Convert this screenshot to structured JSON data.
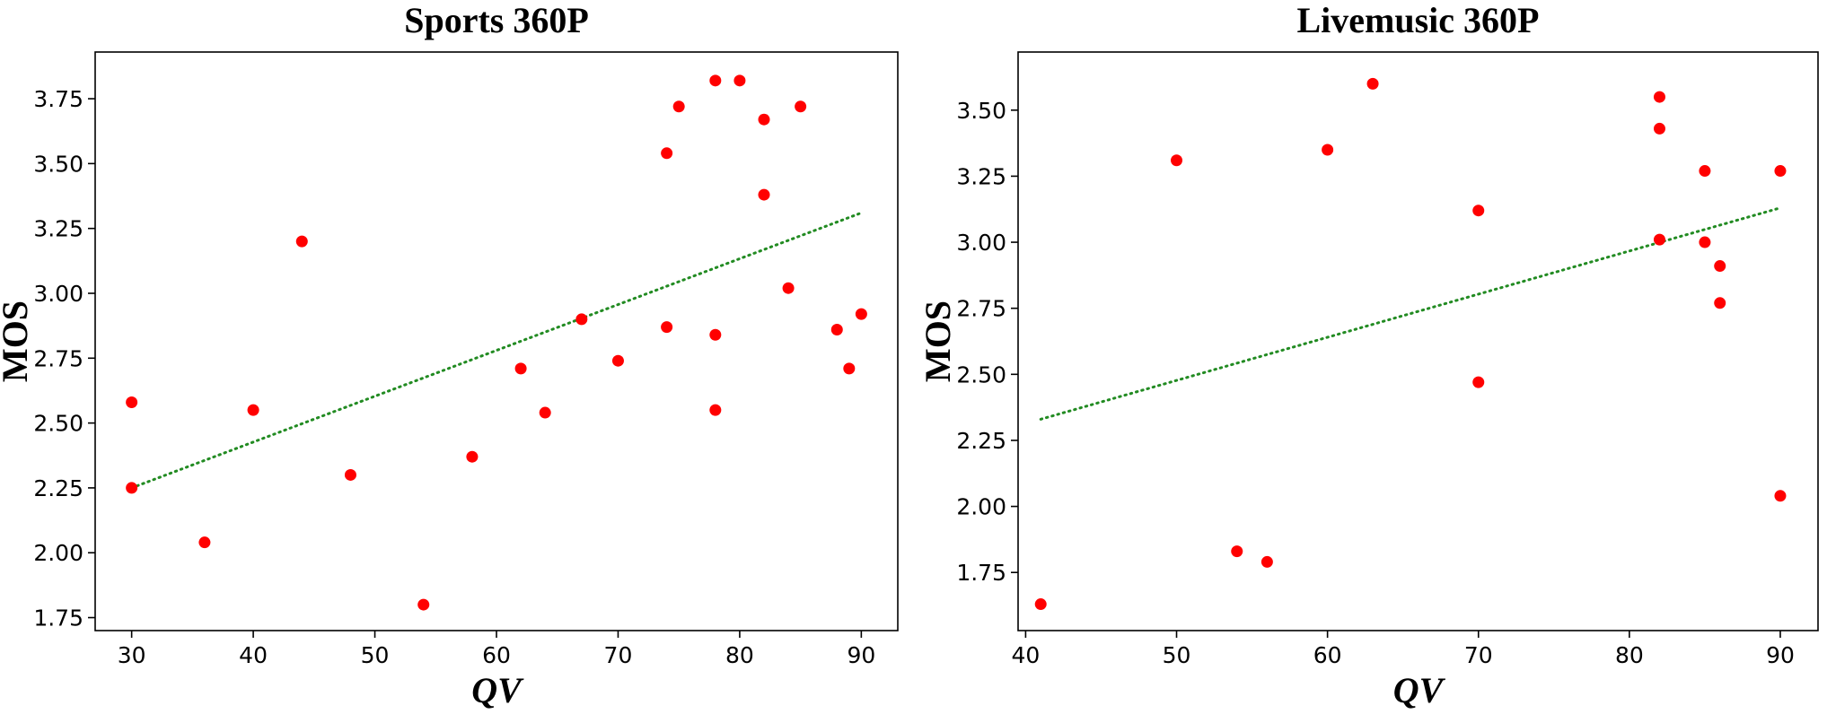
{
  "chart_data": [
    {
      "type": "scatter",
      "title": "Sports 360P",
      "xlabel": "QV",
      "ylabel": "MOS",
      "xlim": [
        27,
        93
      ],
      "ylim": [
        1.7,
        3.93
      ],
      "xticks": [
        30,
        40,
        50,
        60,
        70,
        80,
        90
      ],
      "yticks": [
        1.75,
        2.0,
        2.25,
        2.5,
        2.75,
        3.0,
        3.25,
        3.5,
        3.75
      ],
      "grid": false,
      "series": [
        {
          "marker_color": "#ff0000",
          "points": [
            {
              "x": 30,
              "y": 2.58
            },
            {
              "x": 30,
              "y": 2.25
            },
            {
              "x": 36,
              "y": 2.04
            },
            {
              "x": 40,
              "y": 2.55
            },
            {
              "x": 44,
              "y": 3.2
            },
            {
              "x": 48,
              "y": 2.3
            },
            {
              "x": 54,
              "y": 1.8
            },
            {
              "x": 58,
              "y": 2.37
            },
            {
              "x": 62,
              "y": 2.71
            },
            {
              "x": 64,
              "y": 2.54
            },
            {
              "x": 67,
              "y": 2.9
            },
            {
              "x": 70,
              "y": 2.74
            },
            {
              "x": 74,
              "y": 3.54
            },
            {
              "x": 74,
              "y": 2.87
            },
            {
              "x": 75,
              "y": 3.72
            },
            {
              "x": 78,
              "y": 3.82
            },
            {
              "x": 78,
              "y": 2.84
            },
            {
              "x": 78,
              "y": 2.55
            },
            {
              "x": 80,
              "y": 3.82
            },
            {
              "x": 82,
              "y": 3.67
            },
            {
              "x": 82,
              "y": 3.38
            },
            {
              "x": 84,
              "y": 3.02
            },
            {
              "x": 85,
              "y": 3.72
            },
            {
              "x": 88,
              "y": 2.86
            },
            {
              "x": 89,
              "y": 2.71
            },
            {
              "x": 90,
              "y": 2.92
            }
          ]
        }
      ],
      "trendline": {
        "x": [
          30,
          90
        ],
        "y": [
          2.25,
          3.31
        ],
        "color": "#228b22",
        "style": "dotted"
      }
    },
    {
      "type": "scatter",
      "title": "Livemusic 360P",
      "xlabel": "QV",
      "ylabel": "MOS",
      "xlim": [
        39.5,
        92.5
      ],
      "ylim": [
        1.53,
        3.72
      ],
      "xticks": [
        40,
        50,
        60,
        70,
        80,
        90
      ],
      "yticks": [
        1.75,
        2.0,
        2.25,
        2.5,
        2.75,
        3.0,
        3.25,
        3.5
      ],
      "grid": false,
      "series": [
        {
          "marker_color": "#ff0000",
          "points": [
            {
              "x": 41,
              "y": 1.63
            },
            {
              "x": 50,
              "y": 3.31
            },
            {
              "x": 54,
              "y": 1.83
            },
            {
              "x": 56,
              "y": 1.79
            },
            {
              "x": 60,
              "y": 3.35
            },
            {
              "x": 63,
              "y": 3.6
            },
            {
              "x": 70,
              "y": 3.12
            },
            {
              "x": 70,
              "y": 2.47
            },
            {
              "x": 82,
              "y": 3.55
            },
            {
              "x": 82,
              "y": 3.43
            },
            {
              "x": 82,
              "y": 3.01
            },
            {
              "x": 85,
              "y": 3.27
            },
            {
              "x": 85,
              "y": 3.0
            },
            {
              "x": 86,
              "y": 2.91
            },
            {
              "x": 86,
              "y": 2.77
            },
            {
              "x": 90,
              "y": 3.27
            },
            {
              "x": 90,
              "y": 2.04
            }
          ]
        }
      ],
      "trendline": {
        "x": [
          41,
          90
        ],
        "y": [
          2.33,
          3.13
        ],
        "color": "#228b22",
        "style": "dotted"
      }
    }
  ]
}
